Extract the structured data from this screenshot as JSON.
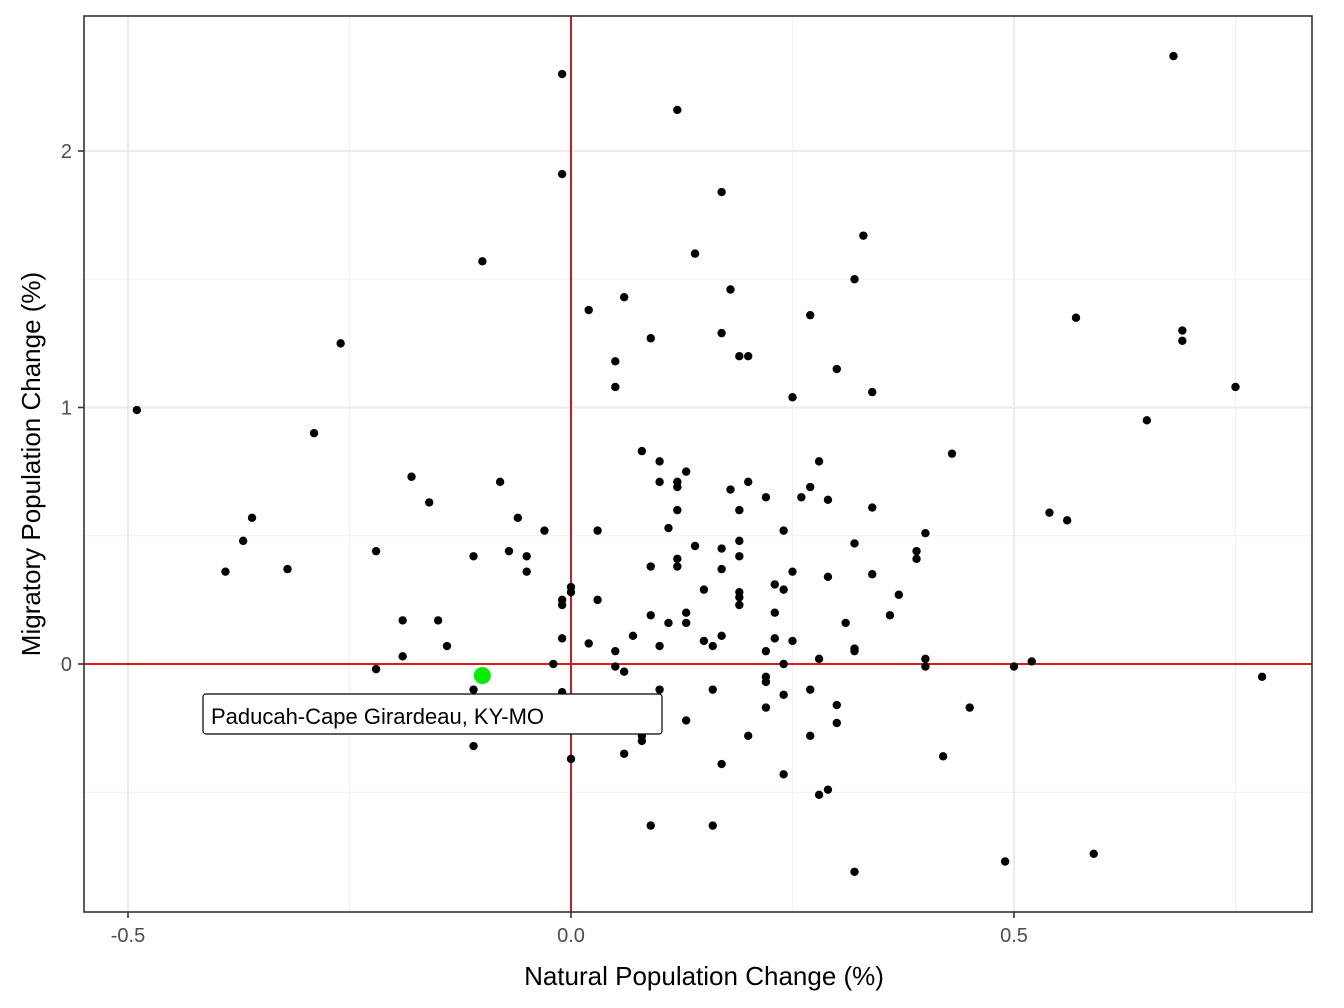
{
  "chart_data": {
    "type": "scatter",
    "xlabel": "Natural Population Change (%)",
    "ylabel": "Migratory Population Change (%)",
    "xlim": [
      -0.5,
      0.8
    ],
    "ylim": [
      -0.95,
      2.5
    ],
    "x_ticks": [
      {
        "value": -0.5,
        "label": "-0.5"
      },
      {
        "value": 0.0,
        "label": "0.0"
      },
      {
        "value": 0.5,
        "label": "0.5"
      }
    ],
    "y_ticks": [
      {
        "value": 0,
        "label": "0"
      },
      {
        "value": 1,
        "label": "1"
      },
      {
        "value": 2,
        "label": "2"
      }
    ],
    "grid": true,
    "reference_lines": {
      "x": 0,
      "y": 0,
      "color": "#d40000"
    },
    "point_color": "#000000",
    "highlight": {
      "label": "Paducah-Cape Girardeau, KY-MO",
      "x": -0.1,
      "y": -0.045,
      "color": "#00ee00"
    },
    "points": [
      [
        -0.01,
        2.3
      ],
      [
        0.12,
        2.16
      ],
      [
        0.17,
        1.84
      ],
      [
        -0.01,
        1.91
      ],
      [
        0.68,
        2.37
      ],
      [
        0.33,
        1.67
      ],
      [
        0.14,
        1.6
      ],
      [
        -0.1,
        1.57
      ],
      [
        0.32,
        1.5
      ],
      [
        0.18,
        1.46
      ],
      [
        0.06,
        1.43
      ],
      [
        0.02,
        1.38
      ],
      [
        0.27,
        1.36
      ],
      [
        0.57,
        1.35
      ],
      [
        0.69,
        1.3
      ],
      [
        0.17,
        1.29
      ],
      [
        0.69,
        1.26
      ],
      [
        0.09,
        1.27
      ],
      [
        -0.26,
        1.25
      ],
      [
        0.19,
        1.2
      ],
      [
        0.2,
        1.2
      ],
      [
        0.05,
        1.18
      ],
      [
        0.3,
        1.15
      ],
      [
        0.05,
        1.08
      ],
      [
        0.75,
        1.08
      ],
      [
        0.34,
        1.06
      ],
      [
        0.25,
        1.04
      ],
      [
        -0.49,
        0.99
      ],
      [
        0.65,
        0.95
      ],
      [
        -0.29,
        0.9
      ],
      [
        0.08,
        0.83
      ],
      [
        0.43,
        0.82
      ],
      [
        0.1,
        0.79
      ],
      [
        0.28,
        0.79
      ],
      [
        0.13,
        0.75
      ],
      [
        -0.18,
        0.73
      ],
      [
        0.12,
        0.71
      ],
      [
        0.2,
        0.71
      ],
      [
        -0.08,
        0.71
      ],
      [
        0.1,
        0.71
      ],
      [
        0.12,
        0.69
      ],
      [
        0.27,
        0.69
      ],
      [
        0.18,
        0.68
      ],
      [
        0.22,
        0.65
      ],
      [
        0.26,
        0.65
      ],
      [
        0.29,
        0.64
      ],
      [
        -0.16,
        0.63
      ],
      [
        0.34,
        0.61
      ],
      [
        0.12,
        0.6
      ],
      [
        0.19,
        0.6
      ],
      [
        0.54,
        0.59
      ],
      [
        -0.36,
        0.57
      ],
      [
        -0.06,
        0.57
      ],
      [
        0.56,
        0.56
      ],
      [
        0.11,
        0.53
      ],
      [
        -0.03,
        0.52
      ],
      [
        0.03,
        0.52
      ],
      [
        0.24,
        0.52
      ],
      [
        0.4,
        0.51
      ],
      [
        -0.37,
        0.48
      ],
      [
        0.19,
        0.48
      ],
      [
        0.32,
        0.47
      ],
      [
        0.14,
        0.46
      ],
      [
        0.17,
        0.45
      ],
      [
        -0.22,
        0.44
      ],
      [
        -0.07,
        0.44
      ],
      [
        0.39,
        0.44
      ],
      [
        -0.11,
        0.42
      ],
      [
        -0.05,
        0.42
      ],
      [
        0.19,
        0.42
      ],
      [
        0.12,
        0.41
      ],
      [
        0.39,
        0.41
      ],
      [
        0.09,
        0.38
      ],
      [
        0.12,
        0.38
      ],
      [
        -0.39,
        0.36
      ],
      [
        -0.05,
        0.36
      ],
      [
        0.17,
        0.37
      ],
      [
        -0.32,
        0.37
      ],
      [
        0.25,
        0.36
      ],
      [
        0.34,
        0.35
      ],
      [
        0.29,
        0.34
      ],
      [
        0.23,
        0.31
      ],
      [
        0.0,
        0.3
      ],
      [
        0.0,
        0.28
      ],
      [
        0.15,
        0.29
      ],
      [
        0.24,
        0.29
      ],
      [
        0.19,
        0.28
      ],
      [
        0.37,
        0.27
      ],
      [
        0.19,
        0.26
      ],
      [
        -0.01,
        0.25
      ],
      [
        0.03,
        0.25
      ],
      [
        -0.01,
        0.23
      ],
      [
        0.19,
        0.23
      ],
      [
        0.13,
        0.2
      ],
      [
        0.23,
        0.2
      ],
      [
        0.09,
        0.19
      ],
      [
        0.36,
        0.19
      ],
      [
        -0.19,
        0.17
      ],
      [
        -0.15,
        0.17
      ],
      [
        0.11,
        0.16
      ],
      [
        0.13,
        0.16
      ],
      [
        0.31,
        0.16
      ],
      [
        0.07,
        0.11
      ],
      [
        0.17,
        0.11
      ],
      [
        -0.01,
        0.1
      ],
      [
        0.23,
        0.1
      ],
      [
        0.15,
        0.09
      ],
      [
        0.25,
        0.09
      ],
      [
        0.02,
        0.08
      ],
      [
        -0.14,
        0.07
      ],
      [
        0.16,
        0.07
      ],
      [
        0.1,
        0.07
      ],
      [
        0.32,
        0.06
      ],
      [
        0.32,
        0.05
      ],
      [
        0.05,
        0.05
      ],
      [
        0.22,
        0.05
      ],
      [
        -0.19,
        0.03
      ],
      [
        0.28,
        0.02
      ],
      [
        0.4,
        0.02
      ],
      [
        0.52,
        0.01
      ],
      [
        -0.02,
        0.0
      ],
      [
        0.24,
        0.0
      ],
      [
        0.05,
        -0.01
      ],
      [
        0.4,
        -0.01
      ],
      [
        0.5,
        -0.01
      ],
      [
        -0.22,
        -0.02
      ],
      [
        0.06,
        -0.03
      ],
      [
        0.78,
        -0.05
      ],
      [
        0.22,
        -0.05
      ],
      [
        0.22,
        -0.07
      ],
      [
        -0.11,
        -0.1
      ],
      [
        0.1,
        -0.1
      ],
      [
        0.16,
        -0.1
      ],
      [
        0.27,
        -0.1
      ],
      [
        -0.01,
        -0.11
      ],
      [
        0.24,
        -0.12
      ],
      [
        0.07,
        -0.15
      ],
      [
        0.3,
        -0.16
      ],
      [
        0.22,
        -0.17
      ],
      [
        0.45,
        -0.17
      ],
      [
        0.13,
        -0.22
      ],
      [
        0.3,
        -0.23
      ],
      [
        0.08,
        -0.28
      ],
      [
        0.2,
        -0.28
      ],
      [
        0.27,
        -0.28
      ],
      [
        0.08,
        -0.3
      ],
      [
        -0.11,
        -0.32
      ],
      [
        0.06,
        -0.35
      ],
      [
        0.42,
        -0.36
      ],
      [
        0.0,
        -0.37
      ],
      [
        0.17,
        -0.39
      ],
      [
        0.24,
        -0.43
      ],
      [
        0.29,
        -0.49
      ],
      [
        0.28,
        -0.51
      ],
      [
        0.09,
        -0.63
      ],
      [
        0.16,
        -0.63
      ],
      [
        0.59,
        -0.74
      ],
      [
        0.49,
        -0.77
      ],
      [
        0.32,
        -0.81
      ]
    ]
  }
}
